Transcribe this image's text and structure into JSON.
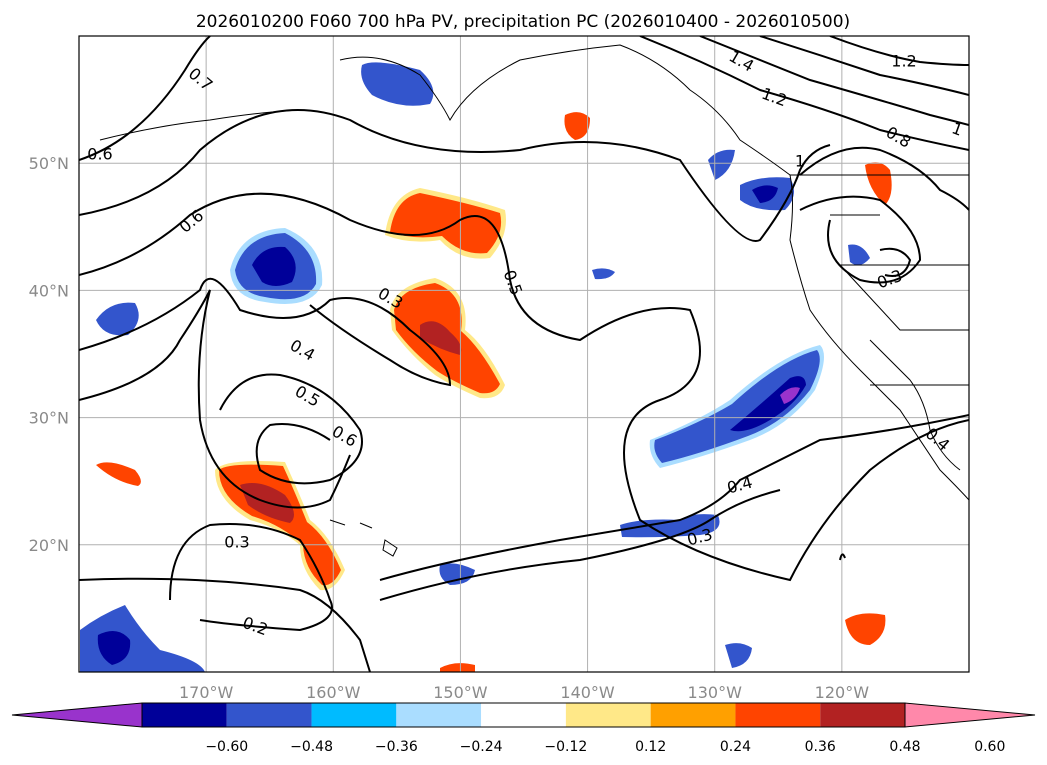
{
  "chart_data": {
    "type": "heatmap",
    "title": "2026010200 F060 700 hPa PV, precipitation PC (2026010400 - 2026010500)",
    "x_ticks": [
      "170°W",
      "160°W",
      "150°W",
      "140°W",
      "130°W",
      "120°W"
    ],
    "y_ticks": [
      "50°N",
      "40°N",
      "30°N",
      "20°N"
    ],
    "lon_range": [
      -180,
      -110
    ],
    "lat_range": [
      10,
      60
    ],
    "colorbar": {
      "ticks": [
        "−0.60",
        "−0.48",
        "−0.36",
        "−0.24",
        "−0.12",
        "0.12",
        "0.24",
        "0.36",
        "0.48",
        "0.60"
      ],
      "colors": [
        "#9933cc",
        "#000099",
        "#3355cc",
        "#00bbff",
        "#aaddff",
        "#ffffff",
        "#ffe888",
        "#ffa000",
        "#ff4400",
        "#b22222",
        "#ff88aa"
      ],
      "extend": "both"
    },
    "contour_labels": [
      "0.7",
      "0.6",
      "0.6",
      "0.5",
      "0.3",
      "0.4",
      "0.5",
      "0.6",
      "0.3",
      "0.2",
      "0.4",
      "0.3",
      "1.4",
      "1.2",
      "1.2",
      "1",
      "0.8",
      "0.3",
      "0.4",
      "1"
    ],
    "precip_regions": [
      {
        "lon": -168.5,
        "lat": 41.5,
        "value": -0.5
      },
      {
        "lon": -148,
        "lat": 46,
        "value": 0.4
      },
      {
        "lon": -150,
        "lat": 36.5,
        "value": 0.44
      },
      {
        "lon": -165,
        "lat": 23.5,
        "value": 0.45
      },
      {
        "lon": -159,
        "lat": 19,
        "value": 0.38
      },
      {
        "lon": -124,
        "lat": 31,
        "value": -0.48
      },
      {
        "lon": -126.5,
        "lat": 47.5,
        "value": -0.5
      },
      {
        "lon": -176.5,
        "lat": 12,
        "value": -0.5
      },
      {
        "lon": -155,
        "lat": 56.5,
        "value": -0.38
      },
      {
        "lon": -120,
        "lat": 13,
        "value": 0.4
      }
    ]
  }
}
